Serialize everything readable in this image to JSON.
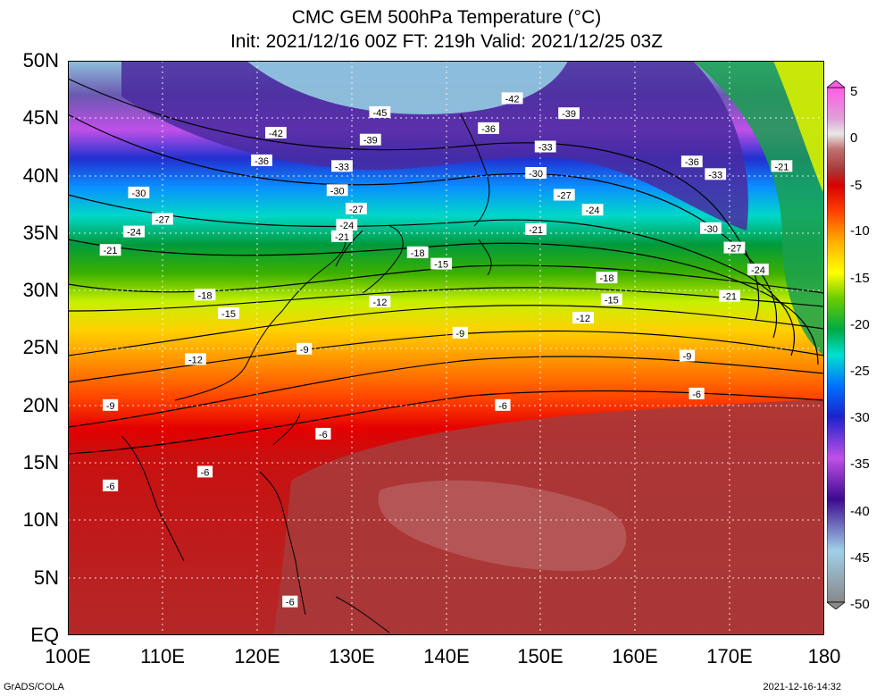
{
  "title": "CMC GEM 500hPa Temperature (°C)",
  "subtitle": "Init: 2021/12/16 00Z  FT: 219h  Valid: 2021/12/25 03Z",
  "footer_left": "GrADS/COLA",
  "footer_right": "2021-12-16-14:32",
  "lat_labels": [
    "50N",
    "45N",
    "40N",
    "35N",
    "30N",
    "25N",
    "20N",
    "15N",
    "10N",
    "5N",
    "EQ"
  ],
  "lon_labels": [
    "100E",
    "110E",
    "120E",
    "130E",
    "140E",
    "150E",
    "160E",
    "170E",
    "180"
  ],
  "colorbar_labels": [
    "5",
    "0",
    "-5",
    "-10",
    "-15",
    "-20",
    "-25",
    "-30",
    "-35",
    "-40",
    "-45",
    "-50"
  ],
  "colors": {
    "stops": [
      "#ff5ce6",
      "#e8e8e8",
      "#c07070",
      "#a83838",
      "#d80000",
      "#ff4000",
      "#ffb000",
      "#ffff00",
      "#6acc00",
      "#00aa44",
      "#00e0d0",
      "#0070ff",
      "#1c22cc",
      "#c050e8",
      "#3c0a90",
      "#a0d0e8",
      "#888888"
    ]
  },
  "chart_data": {
    "type": "heatmap",
    "field": "500hPa Temperature",
    "units": "°C",
    "xlim": [
      100,
      180
    ],
    "ylim": [
      0,
      50
    ],
    "color_range": [
      -50,
      5
    ],
    "contour_interval": 3,
    "contours": [
      {
        "value": -45,
        "lon": 133,
        "lat": 45.5
      },
      {
        "value": -42,
        "lon": 122,
        "lat": 43.7
      },
      {
        "value": -42,
        "lon": 147,
        "lat": 46.7
      },
      {
        "value": -39,
        "lon": 132,
        "lat": 43.1
      },
      {
        "value": -39,
        "lon": 153,
        "lat": 45.4
      },
      {
        "value": -36,
        "lon": 120.5,
        "lat": 41.3
      },
      {
        "value": -36,
        "lon": 144.5,
        "lat": 44.1
      },
      {
        "value": -36,
        "lon": 166,
        "lat": 41.2
      },
      {
        "value": -33,
        "lon": 129,
        "lat": 40.8
      },
      {
        "value": -33,
        "lon": 150.5,
        "lat": 42.5
      },
      {
        "value": -33,
        "lon": 168.5,
        "lat": 40.1
      },
      {
        "value": -30,
        "lon": 107.5,
        "lat": 38.5
      },
      {
        "value": -30,
        "lon": 128.5,
        "lat": 38.7
      },
      {
        "value": -30,
        "lon": 149.5,
        "lat": 40.2
      },
      {
        "value": -30,
        "lon": 168,
        "lat": 35.4
      },
      {
        "value": -27,
        "lon": 110,
        "lat": 36.2
      },
      {
        "value": -27,
        "lon": 130.5,
        "lat": 37.1
      },
      {
        "value": -27,
        "lon": 152.5,
        "lat": 38.3
      },
      {
        "value": -27,
        "lon": 170.5,
        "lat": 33.7
      },
      {
        "value": -24,
        "lon": 107,
        "lat": 35.1
      },
      {
        "value": -24,
        "lon": 129.5,
        "lat": 35.7
      },
      {
        "value": -24,
        "lon": 155.5,
        "lat": 37.0
      },
      {
        "value": -24,
        "lon": 173,
        "lat": 31.8
      },
      {
        "value": -21,
        "lon": 104.5,
        "lat": 33.5
      },
      {
        "value": -21,
        "lon": 129,
        "lat": 34.7
      },
      {
        "value": -21,
        "lon": 149.5,
        "lat": 35.3
      },
      {
        "value": -21,
        "lon": 175.5,
        "lat": 40.8
      },
      {
        "value": -21,
        "lon": 170,
        "lat": 29.5
      },
      {
        "value": -18,
        "lon": 114.5,
        "lat": 29.6
      },
      {
        "value": -18,
        "lon": 137,
        "lat": 33.3
      },
      {
        "value": -18,
        "lon": 157,
        "lat": 31.1
      },
      {
        "value": -15,
        "lon": 117,
        "lat": 28.0
      },
      {
        "value": -15,
        "lon": 139.5,
        "lat": 32.3
      },
      {
        "value": -15,
        "lon": 157.5,
        "lat": 29.2
      },
      {
        "value": -12,
        "lon": 113.5,
        "lat": 24.0
      },
      {
        "value": -12,
        "lon": 133,
        "lat": 29.0
      },
      {
        "value": -12,
        "lon": 154.5,
        "lat": 27.6
      },
      {
        "value": -9,
        "lon": 104.5,
        "lat": 20.0
      },
      {
        "value": -9,
        "lon": 125,
        "lat": 24.9
      },
      {
        "value": -9,
        "lon": 141.5,
        "lat": 26.3
      },
      {
        "value": -9,
        "lon": 165.5,
        "lat": 24.3
      },
      {
        "value": -6,
        "lon": 104.5,
        "lat": 13.0
      },
      {
        "value": -6,
        "lon": 114.5,
        "lat": 14.2
      },
      {
        "value": -6,
        "lon": 127,
        "lat": 17.5
      },
      {
        "value": -6,
        "lon": 146,
        "lat": 20.0
      },
      {
        "value": -6,
        "lon": 166.5,
        "lat": 21.0
      },
      {
        "value": -6,
        "lon": 123.5,
        "lat": 2.9
      }
    ]
  }
}
